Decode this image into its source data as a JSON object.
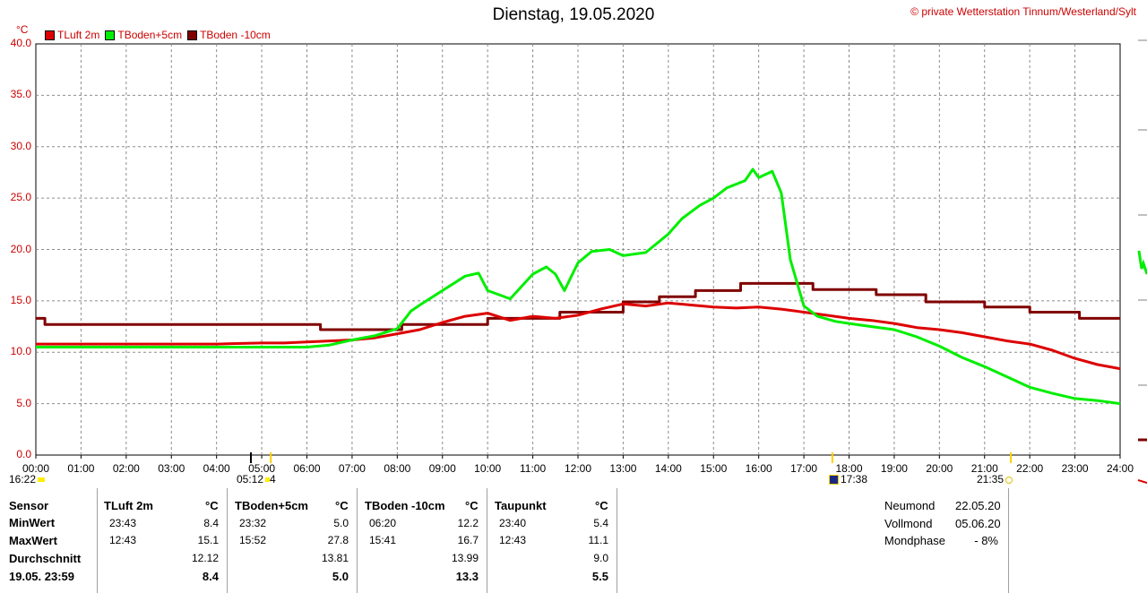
{
  "header": {
    "title": "Dienstag, 19.05.2020",
    "copyright": "© private Wetterstation Tinnum/Westerland/Sylt",
    "unit": "°C"
  },
  "legend": [
    {
      "name": "TLuft 2m",
      "color": "#dd0000"
    },
    {
      "name": "TBoden+5cm",
      "color": "#00ee00"
    },
    {
      "name": "TBoden -10cm",
      "color": "#800000"
    }
  ],
  "chart_data": {
    "type": "line",
    "ylim": [
      0,
      40
    ],
    "xlim": [
      0,
      24
    ],
    "y_ticks": [
      "0.0",
      "5.0",
      "10.0",
      "15.0",
      "20.0",
      "25.0",
      "30.0",
      "35.0",
      "40.0"
    ],
    "x_ticks": [
      "00:00",
      "01:00",
      "02:00",
      "03:00",
      "04:00",
      "05:00",
      "06:00",
      "07:00",
      "08:00",
      "09:00",
      "10:00",
      "11:00",
      "12:00",
      "13:00",
      "14:00",
      "15:00",
      "16:00",
      "17:00",
      "18:00",
      "19:00",
      "20:00",
      "21:00",
      "22:00",
      "23:00",
      "24:00"
    ],
    "grid": true,
    "series": [
      {
        "name": "TLuft 2m",
        "color": "#dd0000",
        "x": [
          0,
          1,
          2,
          3,
          4,
          5,
          5.5,
          6,
          7,
          7.5,
          8,
          8.5,
          9,
          9.5,
          10,
          10.5,
          11,
          11.5,
          12,
          12.5,
          13,
          13.5,
          14,
          14.5,
          15,
          15.5,
          16,
          16.5,
          17,
          17.5,
          18,
          18.5,
          19,
          19.5,
          20,
          20.5,
          21,
          21.5,
          22,
          22.5,
          23,
          23.5,
          24
        ],
        "y": [
          10.8,
          10.8,
          10.8,
          10.8,
          10.8,
          10.9,
          10.9,
          11.0,
          11.2,
          11.4,
          11.8,
          12.2,
          12.9,
          13.5,
          13.8,
          13.1,
          13.5,
          13.3,
          13.6,
          14.2,
          14.7,
          14.5,
          14.8,
          14.6,
          14.4,
          14.3,
          14.4,
          14.2,
          13.9,
          13.6,
          13.3,
          13.1,
          12.8,
          12.4,
          12.2,
          11.9,
          11.5,
          11.1,
          10.8,
          10.2,
          9.4,
          8.8,
          8.4
        ]
      },
      {
        "name": "TBoden+5cm",
        "color": "#00ee00",
        "x": [
          0,
          6,
          6.5,
          7,
          7.5,
          8,
          8.3,
          8.5,
          9,
          9.5,
          9.8,
          10,
          10.5,
          11,
          11.3,
          11.5,
          11.7,
          12,
          12.3,
          12.7,
          13,
          13.5,
          14,
          14.3,
          14.7,
          15,
          15.3,
          15.7,
          15.87,
          16,
          16.3,
          16.5,
          16.7,
          17,
          17.3,
          17.7,
          18,
          18.5,
          19,
          19.5,
          20,
          20.5,
          21,
          21.5,
          22,
          22.5,
          23,
          23.5,
          24
        ],
        "y": [
          10.5,
          10.5,
          10.7,
          11.2,
          11.6,
          12.3,
          14.0,
          14.6,
          16.0,
          17.4,
          17.7,
          16.0,
          15.2,
          17.6,
          18.3,
          17.6,
          16.0,
          18.7,
          19.8,
          20.0,
          19.4,
          19.7,
          21.5,
          23.0,
          24.3,
          25.0,
          26.0,
          26.7,
          27.8,
          27.0,
          27.6,
          25.5,
          19.0,
          14.5,
          13.5,
          13.0,
          12.8,
          12.5,
          12.2,
          11.5,
          10.6,
          9.5,
          8.6,
          7.6,
          6.6,
          6.0,
          5.5,
          5.3,
          5.0
        ]
      },
      {
        "name": "TBoden -10cm",
        "color": "#800000",
        "x": [
          0,
          0.2,
          0.2,
          6.3,
          6.3,
          8.1,
          8.1,
          10.0,
          10.0,
          11.6,
          11.6,
          13.0,
          13.0,
          13.8,
          13.8,
          14.6,
          14.6,
          15.6,
          15.6,
          17.2,
          17.2,
          18.6,
          18.6,
          19.7,
          19.7,
          21.0,
          21.0,
          22.0,
          22.0,
          23.1,
          23.1,
          24
        ],
        "y": [
          13.3,
          13.3,
          12.7,
          12.7,
          12.2,
          12.2,
          12.7,
          12.7,
          13.3,
          13.3,
          13.9,
          13.9,
          14.9,
          14.9,
          15.4,
          15.4,
          16.0,
          16.0,
          16.7,
          16.7,
          16.1,
          16.1,
          15.6,
          15.6,
          14.9,
          14.9,
          14.4,
          14.4,
          13.9,
          13.9,
          13.3,
          13.3
        ]
      }
    ]
  },
  "sun_moon_markers": {
    "sunset_prev": "16:22",
    "sunrise": "05:12",
    "sunrise_suffix": "4",
    "moonset": "17:38",
    "sunset": "21:35"
  },
  "table": {
    "rows": [
      "Sensor",
      "MinWert",
      "MaxWert",
      "Durchschnitt",
      "19.05. 23:59"
    ],
    "columns": [
      {
        "name": "TLuft 2m",
        "unit": "°C",
        "min_time": "23:43",
        "min": "8.4",
        "max_time": "12:43",
        "max": "15.1",
        "avg": "12.12",
        "current": "8.4"
      },
      {
        "name": "TBoden+5cm",
        "unit": "°C",
        "min_time": "23:32",
        "min": "5.0",
        "max_time": "15:52",
        "max": "27.8",
        "avg": "13.81",
        "current": "5.0"
      },
      {
        "name": "TBoden -10cm",
        "unit": "°C",
        "min_time": "06:20",
        "min": "12.2",
        "max_time": "15:41",
        "max": "16.7",
        "avg": "13.99",
        "current": "13.3"
      },
      {
        "name": "Taupunkt",
        "unit": "°C",
        "min_time": "23:40",
        "min": "5.4",
        "max_time": "12:43",
        "max": "11.1",
        "avg": "9.0",
        "current": "5.5"
      }
    ],
    "moon": [
      {
        "label": "Neumond",
        "value": "22.05.20"
      },
      {
        "label": "Vollmond",
        "value": "05.06.20"
      },
      {
        "label": "Mondphase",
        "value": "- 8%"
      }
    ]
  }
}
